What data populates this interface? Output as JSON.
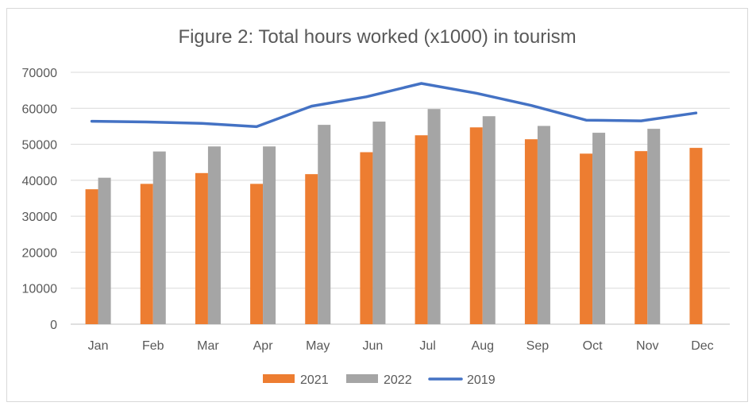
{
  "chart_data": {
    "type": "bar",
    "title": "Figure 2:  Total hours worked (x1000) in tourism",
    "xlabel": "",
    "ylabel": "",
    "categories": [
      "Jan",
      "Feb",
      "Mar",
      "Apr",
      "May",
      "Jun",
      "Jul",
      "Aug",
      "Sep",
      "Oct",
      "Nov",
      "Dec"
    ],
    "ylim": [
      0,
      70000
    ],
    "yticks": [
      "0",
      "10000",
      "20000",
      "30000",
      "40000",
      "50000",
      "60000",
      "70000"
    ],
    "grid": true,
    "legend_position": "bottom",
    "series": [
      {
        "name": "2021",
        "kind": "bar",
        "color": "#ed7d31",
        "values": [
          37500,
          39000,
          42000,
          39000,
          41700,
          47800,
          52500,
          54700,
          51400,
          47400,
          48100,
          49000
        ]
      },
      {
        "name": "2022",
        "kind": "bar",
        "color": "#a5a5a5",
        "values": [
          40700,
          48000,
          49400,
          49400,
          55400,
          56300,
          59800,
          57800,
          55100,
          53200,
          54300,
          null
        ]
      },
      {
        "name": "2019",
        "kind": "line",
        "color": "#4472c4",
        "values": [
          56400,
          56200,
          55800,
          54900,
          60600,
          63200,
          66900,
          64200,
          60800,
          56700,
          56500,
          58700
        ]
      }
    ]
  }
}
